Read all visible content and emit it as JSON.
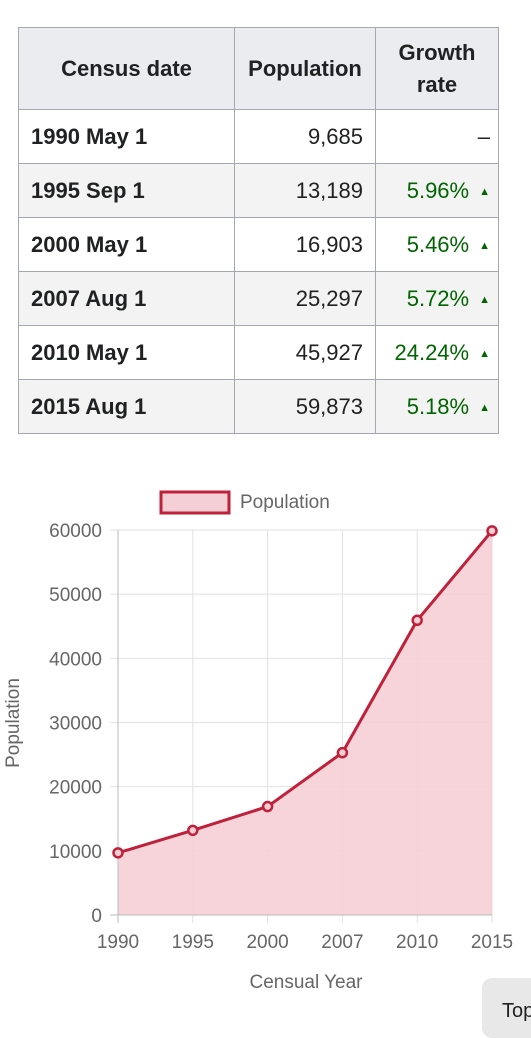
{
  "table": {
    "headers": [
      "Census date",
      "Population",
      "Growth rate"
    ],
    "rows": [
      {
        "date": "1990 May 1",
        "population": "9,685",
        "growth": "–"
      },
      {
        "date": "1995 Sep 1",
        "population": "13,189",
        "growth": "5.96%"
      },
      {
        "date": "2000 May 1",
        "population": "16,903",
        "growth": "5.46%"
      },
      {
        "date": "2007 Aug 1",
        "population": "25,297",
        "growth": "5.72%"
      },
      {
        "date": "2010 May 1",
        "population": "45,927",
        "growth": "24.24%"
      },
      {
        "date": "2015 Aug 1",
        "population": "59,873",
        "growth": "5.18%"
      }
    ],
    "increase_marker": "▲"
  },
  "chart_data": {
    "type": "area",
    "title": "",
    "legend": "Population",
    "legend_position": "top",
    "categories": [
      "1990",
      "1995",
      "2000",
      "2007",
      "2010",
      "2015"
    ],
    "series": [
      {
        "name": "Population",
        "values": [
          9685,
          13189,
          16903,
          25297,
          45927,
          59873
        ]
      }
    ],
    "xlabel": "Censual Year",
    "ylabel": "Population",
    "ylim": [
      0,
      60000
    ],
    "yticks": [
      0,
      10000,
      20000,
      30000,
      40000,
      50000,
      60000
    ],
    "grid": true,
    "line_color": "#c0213a",
    "fill_color": "#f5cfd6"
  },
  "top_button": {
    "label": "Top"
  }
}
